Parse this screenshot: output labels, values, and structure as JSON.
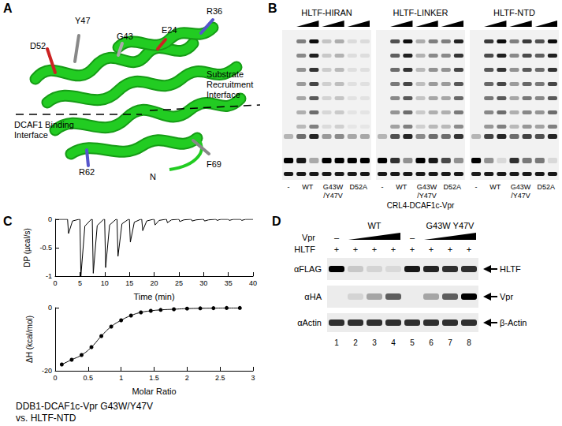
{
  "panel_labels": [
    "A",
    "B",
    "C",
    "D"
  ],
  "panel_a": {
    "residues": [
      "Y47",
      "D52",
      "G43",
      "E24",
      "R36",
      "R62",
      "N",
      "F69"
    ],
    "substrate_interface": [
      "Substrate",
      "Recruitment",
      "Interface"
    ],
    "dcaf1_interface": [
      "DCAF1 Binding",
      "Interface"
    ]
  },
  "panel_b": {
    "blots": [
      {
        "title": "HLTF-HIRAN",
        "unmodified": [
          1,
          0.9,
          0.3,
          1,
          1,
          1,
          1
        ],
        "ladder": [
          0,
          0.5,
          1,
          0.2,
          0.3,
          0.1,
          0.1
        ]
      },
      {
        "title": "HLTF-LINKER",
        "unmodified": [
          1,
          0.8,
          0.4,
          1,
          0.9,
          0.7,
          0.4
        ],
        "ladder": [
          0,
          0.7,
          1,
          0.3,
          0.5,
          0.5,
          0.9
        ]
      },
      {
        "title": "HLTF-NTD",
        "unmodified": [
          1,
          0.4,
          0.1,
          0.8,
          0.5,
          0.5,
          0.1
        ],
        "ladder": [
          0,
          0.8,
          1,
          0.5,
          0.8,
          0.7,
          1
        ]
      }
    ],
    "lane_labels": [
      [
        "-"
      ],
      [
        "WT"
      ],
      [
        "G43W",
        "/Y47V"
      ],
      [
        "D52A"
      ]
    ],
    "ligase": "CRL4-DCAF1c-Vpr"
  },
  "chart_data": [
    {
      "type": "line",
      "x_label": "Time (min)",
      "y_label": "DP (µcal/s)",
      "marker": "none",
      "color": "#000000",
      "x": [
        0,
        2.5,
        2.7,
        3.5,
        4.8,
        5,
        5.2,
        6,
        7.3,
        7.5,
        7.7,
        8.5,
        9.8,
        10,
        10.2,
        11,
        12.3,
        12.5,
        12.7,
        13.5,
        14.8,
        15,
        15.2,
        16,
        17.3,
        17.5,
        17.7,
        18.5,
        19.8,
        20,
        20.2,
        21,
        22.3,
        22.5,
        22.7,
        23.5,
        24.8,
        25,
        25.2,
        26,
        27.3,
        27.5,
        27.7,
        28.5,
        29.8,
        30,
        30.2,
        31,
        32.3,
        32.5,
        32.7,
        33.5,
        34.8,
        35,
        35.2,
        36,
        37.3,
        37.5,
        37.7,
        38.5,
        40
      ],
      "values": [
        0,
        0,
        -0.25,
        -0.03,
        0,
        0,
        -1.0,
        -0.12,
        0,
        0,
        -0.95,
        -0.11,
        0,
        0,
        -0.85,
        -0.1,
        0,
        0,
        -0.65,
        -0.08,
        0,
        0,
        -0.4,
        -0.05,
        0,
        0,
        -0.2,
        -0.03,
        0,
        0,
        -0.1,
        -0.02,
        0,
        0,
        -0.06,
        -0.01,
        0,
        0,
        -0.04,
        -0.01,
        0,
        0,
        -0.03,
        -0.01,
        0,
        0,
        -0.03,
        -0.01,
        0,
        0,
        -0.02,
        0,
        0,
        0,
        -0.02,
        0,
        0,
        0,
        -0.02,
        0,
        0
      ],
      "xlim": [
        0,
        40
      ],
      "xticks": [
        0,
        5,
        10,
        15,
        20,
        25,
        30,
        35,
        40
      ],
      "ylim": [
        -1,
        0
      ],
      "yticks": [
        -1,
        -0.5,
        0
      ]
    },
    {
      "type": "line",
      "x_label": "Molar Ratio",
      "y_label": "ΔH (kcal/mol)",
      "marker": "circle",
      "color": "#000000",
      "x": [
        0.1,
        0.25,
        0.4,
        0.55,
        0.7,
        0.85,
        1.0,
        1.15,
        1.3,
        1.45,
        1.6,
        1.8,
        2.0,
        2.2,
        2.4,
        2.6,
        2.8
      ],
      "values": [
        -18,
        -16.5,
        -15,
        -12.5,
        -9,
        -6,
        -4,
        -2.5,
        -1.5,
        -1,
        -0.7,
        -0.5,
        -0.3,
        -0.2,
        -0.15,
        -0.1,
        -0.1
      ],
      "xlim": [
        0,
        3
      ],
      "xticks": [
        0,
        0.5,
        1,
        1.5,
        2,
        2.5,
        3
      ],
      "ylim": [
        -20,
        0
      ],
      "yticks": [
        -20,
        0
      ]
    }
  ],
  "panel_c_caption": [
    "DDB1-DCAF1c-Vpr G43W/Y47V",
    "vs. HLTF-NTD"
  ],
  "panel_d": {
    "groups": [
      "WT",
      "G43W Y47V"
    ],
    "vpr_label": "Vpr",
    "vpr_minus": "–",
    "hltf_label": "HLTF",
    "hltf_marks": [
      "+",
      "+",
      "+",
      "+",
      "+",
      "+",
      "+",
      "+"
    ],
    "rows": [
      {
        "antibody": "αFLAG",
        "target": "HLTF",
        "bands": [
          1,
          0.15,
          0.1,
          0.08,
          0.9,
          0.85,
          0.8,
          0.8
        ]
      },
      {
        "antibody": "αHA",
        "target": "Vpr",
        "bands": [
          0,
          0.1,
          0.3,
          0.6,
          0,
          0.3,
          0.6,
          1
        ]
      },
      {
        "antibody": "αActin",
        "target": "β-Actin",
        "bands": [
          0.8,
          0.8,
          0.8,
          0.8,
          0.8,
          0.8,
          0.8,
          0.8
        ]
      }
    ],
    "lanes": [
      1,
      2,
      3,
      4,
      5,
      6,
      7,
      8
    ]
  }
}
